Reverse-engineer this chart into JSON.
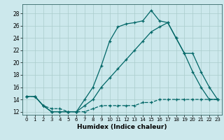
{
  "xlabel": "Humidex (Indice chaleur)",
  "bg_color": "#cce8ec",
  "line_color": "#006666",
  "grid_color": "#aacccc",
  "xlim": [
    -0.5,
    23.5
  ],
  "ylim": [
    11.5,
    29.5
  ],
  "xticks": [
    0,
    1,
    2,
    3,
    4,
    5,
    6,
    7,
    8,
    9,
    10,
    11,
    12,
    13,
    14,
    15,
    16,
    17,
    18,
    19,
    20,
    21,
    22,
    23
  ],
  "yticks": [
    12,
    14,
    16,
    18,
    20,
    22,
    24,
    26,
    28
  ],
  "line1_x": [
    0,
    1,
    2,
    3,
    4,
    5,
    6,
    7,
    8,
    9,
    10,
    11,
    12,
    13,
    14,
    15,
    16,
    17,
    18,
    19,
    20,
    21,
    22,
    23
  ],
  "line1_y": [
    14.5,
    14.5,
    13,
    12,
    12,
    12,
    12,
    14,
    16,
    19.5,
    23.5,
    25.8,
    26.3,
    26.5,
    26.8,
    28.5,
    26.8,
    26.5,
    24,
    21.5,
    18.5,
    16,
    14,
    14
  ],
  "line2_x": [
    0,
    1,
    2,
    3,
    4,
    5,
    6,
    7,
    8,
    9,
    10,
    11,
    12,
    13,
    14,
    15,
    16,
    17,
    18,
    19,
    20,
    21,
    22,
    23
  ],
  "line2_y": [
    14.5,
    14.5,
    13,
    12,
    12,
    12,
    12,
    13,
    14,
    16,
    17.5,
    19,
    20.5,
    22,
    23.5,
    25,
    25.8,
    26.5,
    24,
    21.5,
    21.5,
    18.5,
    16,
    14
  ],
  "line3_x": [
    0,
    1,
    2,
    3,
    4,
    5,
    6,
    7,
    8,
    9,
    10,
    11,
    12,
    13,
    14,
    15,
    16,
    17,
    18,
    19,
    20,
    21,
    22,
    23
  ],
  "line3_y": [
    14.5,
    14.5,
    13,
    12.5,
    12.5,
    12,
    12,
    12,
    12.5,
    13,
    13,
    13,
    13,
    13,
    13.5,
    13.5,
    14,
    14,
    14,
    14,
    14,
    14,
    14,
    14
  ]
}
